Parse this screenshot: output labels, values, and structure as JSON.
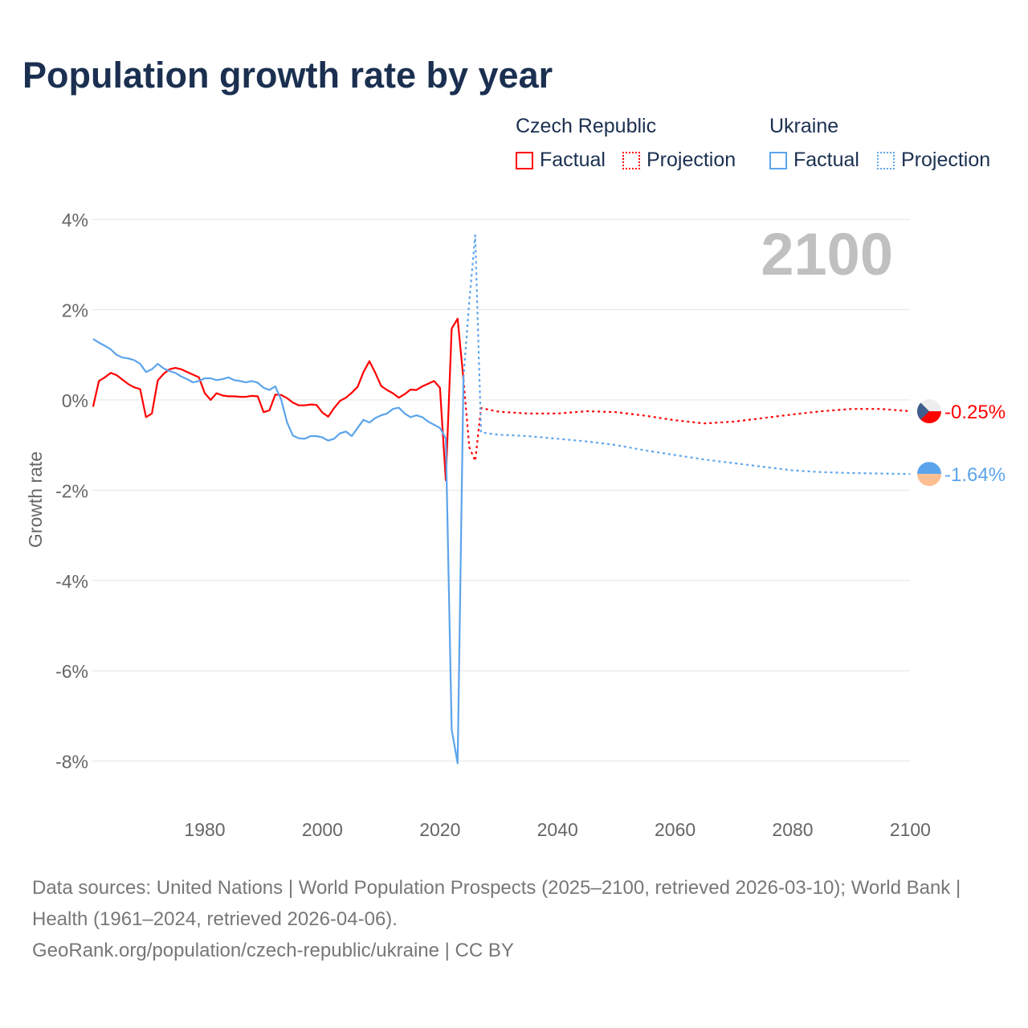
{
  "title": "Population growth rate by year",
  "legend": {
    "groups": [
      {
        "name": "Czech Republic",
        "color": "#ff0000",
        "factual": "Factual",
        "projection": "Projection"
      },
      {
        "name": "Ukraine",
        "color": "#5ba4ec",
        "factual": "Factual",
        "projection": "Projection"
      }
    ]
  },
  "footer": {
    "sources": "Data sources: United Nations | World Population Prospects (2025–2100, retrieved 2026-03-10); World Bank | Health (1961–2024, retrieved 2026-04-06).",
    "link": "GeoRank.org/population/czech-republic/ukraine | CC BY"
  },
  "chart_data": {
    "type": "line",
    "title": "Population growth rate by year",
    "ylabel": "Growth rate",
    "xlim": [
      1961,
      2100
    ],
    "ylim": [
      -9,
      4.4
    ],
    "year_watermark": "2100",
    "xticks": [
      1980,
      2000,
      2020,
      2040,
      2060,
      2080,
      2100
    ],
    "xtick_labels": [
      "1980",
      "2000",
      "2020",
      "2040",
      "2060",
      "2080",
      "2100"
    ],
    "yticks": [
      4,
      2,
      0,
      -2,
      -4,
      -6,
      -8
    ],
    "ytick_labels": [
      "4%",
      "2%",
      "0%",
      "-2%",
      "-4%",
      "-6%",
      "-8%"
    ],
    "series": [
      {
        "name": "Czech Republic Factual",
        "color": "#ff0000",
        "dashed": false,
        "x": [
          1961,
          1962,
          1963,
          1964,
          1965,
          1966,
          1967,
          1968,
          1969,
          1970,
          1971,
          1972,
          1973,
          1974,
          1975,
          1976,
          1977,
          1978,
          1979,
          1980,
          1981,
          1982,
          1983,
          1984,
          1985,
          1986,
          1987,
          1988,
          1989,
          1990,
          1991,
          1992,
          1993,
          1994,
          1995,
          1996,
          1997,
          1998,
          1999,
          2000,
          2001,
          2002,
          2003,
          2004,
          2005,
          2006,
          2007,
          2008,
          2009,
          2010,
          2011,
          2012,
          2013,
          2014,
          2015,
          2016,
          2017,
          2018,
          2019,
          2020,
          2021,
          2022,
          2023,
          2024
        ],
        "y": [
          -0.15,
          0.42,
          0.5,
          0.6,
          0.55,
          0.45,
          0.35,
          0.28,
          0.24,
          -0.38,
          -0.3,
          0.43,
          0.58,
          0.68,
          0.71,
          0.68,
          0.62,
          0.56,
          0.5,
          0.15,
          0.0,
          0.15,
          0.1,
          0.08,
          0.08,
          0.07,
          0.07,
          0.09,
          0.08,
          -0.27,
          -0.23,
          0.12,
          0.11,
          0.04,
          -0.06,
          -0.12,
          -0.12,
          -0.1,
          -0.11,
          -0.28,
          -0.37,
          -0.18,
          -0.02,
          0.05,
          0.16,
          0.29,
          0.62,
          0.86,
          0.6,
          0.31,
          0.22,
          0.15,
          0.05,
          0.13,
          0.23,
          0.22,
          0.3,
          0.36,
          0.42,
          0.27,
          -1.78,
          1.58,
          1.8,
          0.45
        ]
      },
      {
        "name": "Czech Republic Projection",
        "color": "#ff0000",
        "dashed": true,
        "x": [
          2024,
          2025,
          2026,
          2027,
          2030,
          2035,
          2040,
          2045,
          2050,
          2055,
          2060,
          2065,
          2070,
          2075,
          2080,
          2085,
          2090,
          2095,
          2100
        ],
        "y": [
          0.45,
          -1.05,
          -1.35,
          -0.18,
          -0.26,
          -0.3,
          -0.3,
          -0.25,
          -0.27,
          -0.35,
          -0.45,
          -0.52,
          -0.48,
          -0.4,
          -0.32,
          -0.25,
          -0.2,
          -0.2,
          -0.25
        ]
      },
      {
        "name": "Ukraine Factual",
        "color": "#5ba4ec",
        "dashed": false,
        "x": [
          1961,
          1962,
          1963,
          1964,
          1965,
          1966,
          1967,
          1968,
          1969,
          1970,
          1971,
          1972,
          1973,
          1974,
          1975,
          1976,
          1977,
          1978,
          1979,
          1980,
          1981,
          1982,
          1983,
          1984,
          1985,
          1986,
          1987,
          1988,
          1989,
          1990,
          1991,
          1992,
          1993,
          1994,
          1995,
          1996,
          1997,
          1998,
          1999,
          2000,
          2001,
          2002,
          2003,
          2004,
          2005,
          2006,
          2007,
          2008,
          2009,
          2010,
          2011,
          2012,
          2013,
          2014,
          2015,
          2016,
          2017,
          2018,
          2019,
          2020,
          2021,
          2022,
          2023,
          2024
        ],
        "y": [
          1.35,
          1.27,
          1.2,
          1.12,
          1.0,
          0.94,
          0.92,
          0.88,
          0.8,
          0.62,
          0.68,
          0.8,
          0.7,
          0.64,
          0.6,
          0.52,
          0.46,
          0.39,
          0.42,
          0.48,
          0.48,
          0.44,
          0.46,
          0.5,
          0.44,
          0.42,
          0.39,
          0.42,
          0.38,
          0.27,
          0.22,
          0.3,
          0.0,
          -0.5,
          -0.79,
          -0.85,
          -0.86,
          -0.8,
          -0.8,
          -0.83,
          -0.9,
          -0.86,
          -0.74,
          -0.7,
          -0.8,
          -0.62,
          -0.44,
          -0.5,
          -0.4,
          -0.34,
          -0.3,
          -0.2,
          -0.17,
          -0.3,
          -0.38,
          -0.34,
          -0.38,
          -0.48,
          -0.55,
          -0.62,
          -0.85,
          -7.3,
          -8.05,
          0.5
        ]
      },
      {
        "name": "Ukraine Projection",
        "color": "#5ba4ec",
        "dashed": true,
        "x": [
          2024,
          2025,
          2026,
          2027,
          2030,
          2035,
          2040,
          2045,
          2050,
          2055,
          2060,
          2065,
          2070,
          2075,
          2080,
          2085,
          2090,
          2095,
          2100
        ],
        "y": [
          0.5,
          2.2,
          3.65,
          -0.72,
          -0.77,
          -0.8,
          -0.86,
          -0.92,
          -1.0,
          -1.12,
          -1.22,
          -1.32,
          -1.4,
          -1.48,
          -1.56,
          -1.6,
          -1.62,
          -1.63,
          -1.64
        ]
      }
    ],
    "end_labels": [
      {
        "country": "Czech Republic",
        "value": "-0.25%",
        "v": -0.25,
        "color": "#ff0000",
        "flag": "czech-flag-icon"
      },
      {
        "country": "Ukraine",
        "value": "-1.64%",
        "v": -1.64,
        "color": "#5ba4ec",
        "flag": "ukraine-flag-icon"
      }
    ]
  }
}
